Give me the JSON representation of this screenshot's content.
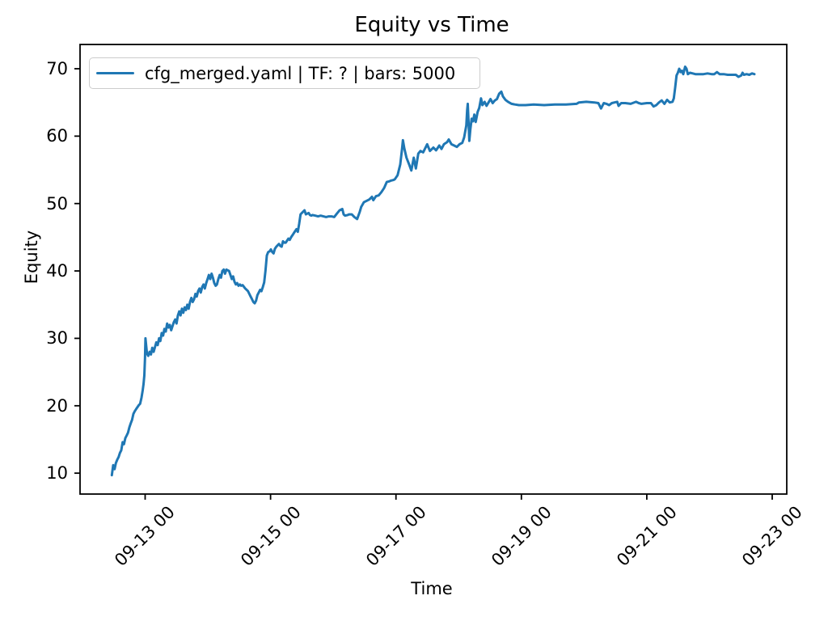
{
  "figure": {
    "title": "Equity vs Time",
    "xlabel": "Time",
    "ylabel": "Equity"
  },
  "legend": {
    "label": "cfg_merged.yaml | TF: ? | bars: 5000",
    "line_color": "#1f77b4"
  },
  "chart_data": {
    "type": "line",
    "title": "Equity vs Time",
    "xlabel": "Time",
    "ylabel": "Equity",
    "x_unit": "days since 09-13 00:00",
    "grid": false,
    "legend_position": "upper left",
    "xlim": [
      -1.038,
      10.232
    ],
    "ylim": [
      6.9,
      73.6
    ],
    "x_ticks": [
      {
        "t": 0,
        "label": "09-13 00"
      },
      {
        "t": 2,
        "label": "09-15 00"
      },
      {
        "t": 4,
        "label": "09-17 00"
      },
      {
        "t": 6,
        "label": "09-19 00"
      },
      {
        "t": 8,
        "label": "09-21 00"
      },
      {
        "t": 10,
        "label": "09-23 00"
      }
    ],
    "y_ticks": [
      10,
      20,
      30,
      40,
      50,
      60,
      70
    ],
    "series": [
      {
        "name": "cfg_merged.yaml | TF: ? | bars: 5000",
        "color": "#1f77b4",
        "points": [
          [
            -0.531,
            9.7
          ],
          [
            -0.509,
            11.2
          ],
          [
            -0.487,
            10.6
          ],
          [
            -0.467,
            11.5
          ],
          [
            -0.445,
            12.0
          ],
          [
            -0.423,
            12.4
          ],
          [
            -0.402,
            13.0
          ],
          [
            -0.38,
            13.4
          ],
          [
            -0.358,
            14.6
          ],
          [
            -0.338,
            14.3
          ],
          [
            -0.316,
            15.2
          ],
          [
            -0.294,
            15.6
          ],
          [
            -0.273,
            16.0
          ],
          [
            -0.251,
            16.8
          ],
          [
            -0.23,
            17.4
          ],
          [
            -0.209,
            17.9
          ],
          [
            -0.187,
            18.8
          ],
          [
            -0.165,
            19.2
          ],
          [
            -0.144,
            19.5
          ],
          [
            -0.122,
            19.8
          ],
          [
            -0.101,
            20.1
          ],
          [
            -0.08,
            20.3
          ],
          [
            -0.058,
            21.2
          ],
          [
            -0.039,
            22.3
          ],
          [
            -0.026,
            23.2
          ],
          [
            -0.013,
            24.5
          ],
          [
            -0.003,
            27.0
          ],
          [
            0.005,
            30.0
          ],
          [
            0.028,
            27.8
          ],
          [
            0.049,
            27.4
          ],
          [
            0.071,
            28.0
          ],
          [
            0.093,
            27.6
          ],
          [
            0.113,
            28.6
          ],
          [
            0.135,
            28.0
          ],
          [
            0.178,
            29.4
          ],
          [
            0.2,
            29.0
          ],
          [
            0.222,
            30.0
          ],
          [
            0.242,
            29.6
          ],
          [
            0.264,
            30.8
          ],
          [
            0.286,
            30.4
          ],
          [
            0.307,
            31.4
          ],
          [
            0.329,
            31.0
          ],
          [
            0.351,
            32.2
          ],
          [
            0.371,
            31.6
          ],
          [
            0.393,
            32.0
          ],
          [
            0.415,
            31.2
          ],
          [
            0.436,
            31.8
          ],
          [
            0.458,
            32.4
          ],
          [
            0.48,
            32.8
          ],
          [
            0.5,
            32.2
          ],
          [
            0.522,
            33.4
          ],
          [
            0.544,
            34.0
          ],
          [
            0.565,
            33.4
          ],
          [
            0.587,
            34.4
          ],
          [
            0.609,
            33.8
          ],
          [
            0.629,
            34.6
          ],
          [
            0.651,
            34.2
          ],
          [
            0.673,
            35.0
          ],
          [
            0.694,
            34.4
          ],
          [
            0.716,
            35.4
          ],
          [
            0.738,
            36.0
          ],
          [
            0.758,
            35.4
          ],
          [
            0.78,
            35.8
          ],
          [
            0.802,
            36.6
          ],
          [
            0.823,
            36.2
          ],
          [
            0.845,
            37.0
          ],
          [
            0.866,
            37.4
          ],
          [
            0.887,
            36.8
          ],
          [
            0.909,
            37.6
          ],
          [
            0.931,
            38.0
          ],
          [
            0.952,
            37.4
          ],
          [
            0.974,
            38.2
          ],
          [
            0.995,
            38.8
          ],
          [
            1.016,
            39.4
          ],
          [
            1.038,
            38.8
          ],
          [
            1.06,
            39.6
          ],
          [
            1.081,
            39.0
          ],
          [
            1.102,
            38.2
          ],
          [
            1.124,
            37.8
          ],
          [
            1.145,
            38.0
          ],
          [
            1.167,
            38.8
          ],
          [
            1.189,
            39.4
          ],
          [
            1.21,
            39.0
          ],
          [
            1.231,
            40.0
          ],
          [
            1.253,
            40.2
          ],
          [
            1.274,
            39.6
          ],
          [
            1.296,
            40.2
          ],
          [
            1.339,
            40.0
          ],
          [
            1.36,
            39.4
          ],
          [
            1.382,
            38.8
          ],
          [
            1.403,
            39.2
          ],
          [
            1.425,
            38.4
          ],
          [
            1.447,
            38.0
          ],
          [
            1.468,
            38.2
          ],
          [
            1.489,
            37.8
          ],
          [
            1.511,
            38.0
          ],
          [
            1.532,
            37.8
          ],
          [
            1.554,
            37.9
          ],
          [
            1.596,
            37.4
          ],
          [
            1.618,
            37.2
          ],
          [
            1.64,
            37.0
          ],
          [
            1.661,
            36.6
          ],
          [
            1.683,
            36.2
          ],
          [
            1.705,
            35.8
          ],
          [
            1.725,
            35.4
          ],
          [
            1.747,
            35.2
          ],
          [
            1.769,
            35.6
          ],
          [
            1.79,
            36.4
          ],
          [
            1.812,
            36.8
          ],
          [
            1.834,
            37.2
          ],
          [
            1.854,
            37.0
          ],
          [
            1.876,
            37.6
          ],
          [
            1.898,
            38.3
          ],
          [
            1.919,
            40.0
          ],
          [
            1.941,
            42.3
          ],
          [
            1.963,
            42.8
          ],
          [
            1.984,
            42.9
          ],
          [
            2.005,
            43.2
          ],
          [
            2.027,
            42.8
          ],
          [
            2.048,
            42.6
          ],
          [
            2.07,
            43.3
          ],
          [
            2.092,
            43.6
          ],
          [
            2.112,
            43.8
          ],
          [
            2.134,
            44.0
          ],
          [
            2.156,
            43.7
          ],
          [
            2.177,
            43.6
          ],
          [
            2.199,
            44.4
          ],
          [
            2.22,
            44.2
          ],
          [
            2.241,
            44.2
          ],
          [
            2.263,
            44.5
          ],
          [
            2.285,
            44.8
          ],
          [
            2.306,
            44.6
          ],
          [
            2.328,
            45.0
          ],
          [
            2.349,
            45.3
          ],
          [
            2.37,
            45.6
          ],
          [
            2.392,
            45.9
          ],
          [
            2.414,
            46.2
          ],
          [
            2.434,
            45.8
          ],
          [
            2.456,
            47.0
          ],
          [
            2.478,
            48.4
          ],
          [
            2.499,
            48.6
          ],
          [
            2.521,
            48.8
          ],
          [
            2.542,
            49.0
          ],
          [
            2.563,
            48.4
          ],
          [
            2.585,
            48.5
          ],
          [
            2.607,
            48.6
          ],
          [
            2.628,
            48.3
          ],
          [
            2.65,
            48.2
          ],
          [
            2.671,
            48.3
          ],
          [
            2.714,
            48.2
          ],
          [
            2.757,
            48.1
          ],
          [
            2.8,
            48.2
          ],
          [
            2.843,
            48.1
          ],
          [
            2.886,
            48.0
          ],
          [
            2.929,
            48.1
          ],
          [
            2.972,
            48.1
          ],
          [
            3.015,
            48.0
          ],
          [
            3.058,
            48.5
          ],
          [
            3.101,
            49.0
          ],
          [
            3.144,
            49.2
          ],
          [
            3.166,
            48.4
          ],
          [
            3.188,
            48.2
          ],
          [
            3.23,
            48.3
          ],
          [
            3.252,
            48.4
          ],
          [
            3.295,
            48.4
          ],
          [
            3.337,
            48.0
          ],
          [
            3.381,
            47.7
          ],
          [
            3.424,
            48.8
          ],
          [
            3.446,
            49.5
          ],
          [
            3.488,
            50.2
          ],
          [
            3.531,
            50.4
          ],
          [
            3.574,
            50.6
          ],
          [
            3.617,
            51.0
          ],
          [
            3.639,
            50.5
          ],
          [
            3.682,
            51.1
          ],
          [
            3.724,
            51.2
          ],
          [
            3.768,
            51.7
          ],
          [
            3.81,
            52.3
          ],
          [
            3.853,
            53.2
          ],
          [
            3.897,
            53.3
          ],
          [
            3.917,
            53.4
          ],
          [
            3.961,
            53.5
          ],
          [
            3.982,
            53.6
          ],
          [
            4.026,
            54.2
          ],
          [
            4.068,
            55.8
          ],
          [
            4.098,
            58.2
          ],
          [
            4.111,
            59.4
          ],
          [
            4.133,
            58.2
          ],
          [
            4.167,
            56.8
          ],
          [
            4.21,
            55.8
          ],
          [
            4.245,
            54.9
          ],
          [
            4.284,
            56.8
          ],
          [
            4.317,
            55.2
          ],
          [
            4.356,
            57.4
          ],
          [
            4.391,
            57.8
          ],
          [
            4.433,
            57.6
          ],
          [
            4.498,
            58.8
          ],
          [
            4.542,
            57.8
          ],
          [
            4.597,
            58.3
          ],
          [
            4.64,
            57.9
          ],
          [
            4.691,
            58.6
          ],
          [
            4.726,
            58.1
          ],
          [
            4.765,
            58.8
          ],
          [
            4.813,
            59.1
          ],
          [
            4.842,
            59.5
          ],
          [
            4.885,
            58.8
          ],
          [
            4.929,
            58.6
          ],
          [
            4.971,
            58.4
          ],
          [
            5.014,
            58.8
          ],
          [
            5.057,
            59.0
          ],
          [
            5.087,
            59.8
          ],
          [
            5.122,
            61.6
          ],
          [
            5.135,
            63.8
          ],
          [
            5.145,
            64.8
          ],
          [
            5.158,
            62.0
          ],
          [
            5.17,
            59.3
          ],
          [
            5.186,
            61.0
          ],
          [
            5.207,
            62.6
          ],
          [
            5.229,
            62.2
          ],
          [
            5.25,
            63.2
          ],
          [
            5.271,
            62.1
          ],
          [
            5.302,
            63.6
          ],
          [
            5.328,
            64.2
          ],
          [
            5.357,
            65.6
          ],
          [
            5.379,
            64.6
          ],
          [
            5.413,
            65.1
          ],
          [
            5.444,
            64.5
          ],
          [
            5.477,
            65.0
          ],
          [
            5.508,
            65.5
          ],
          [
            5.542,
            64.9
          ],
          [
            5.577,
            65.3
          ],
          [
            5.611,
            65.5
          ],
          [
            5.645,
            66.3
          ],
          [
            5.68,
            66.6
          ],
          [
            5.706,
            65.9
          ],
          [
            5.744,
            65.4
          ],
          [
            5.787,
            65.1
          ],
          [
            5.844,
            64.8
          ],
          [
            5.895,
            64.7
          ],
          [
            5.96,
            64.6
          ],
          [
            6.067,
            64.6
          ],
          [
            6.196,
            64.7
          ],
          [
            6.363,
            64.6
          ],
          [
            6.531,
            64.7
          ],
          [
            6.712,
            64.7
          ],
          [
            6.879,
            64.8
          ],
          [
            6.918,
            65.0
          ],
          [
            7.034,
            65.1
          ],
          [
            7.163,
            65.0
          ],
          [
            7.227,
            64.9
          ],
          [
            7.27,
            64.1
          ],
          [
            7.314,
            64.9
          ],
          [
            7.356,
            64.8
          ],
          [
            7.399,
            64.6
          ],
          [
            7.443,
            64.9
          ],
          [
            7.485,
            65.0
          ],
          [
            7.528,
            65.1
          ],
          [
            7.55,
            64.5
          ],
          [
            7.592,
            64.9
          ],
          [
            7.657,
            64.9
          ],
          [
            7.743,
            64.8
          ],
          [
            7.829,
            65.1
          ],
          [
            7.872,
            64.9
          ],
          [
            7.915,
            64.8
          ],
          [
            8.001,
            64.9
          ],
          [
            8.066,
            64.9
          ],
          [
            8.108,
            64.4
          ],
          [
            8.152,
            64.6
          ],
          [
            8.195,
            65.0
          ],
          [
            8.237,
            65.3
          ],
          [
            8.281,
            64.8
          ],
          [
            8.324,
            65.4
          ],
          [
            8.366,
            65.0
          ],
          [
            8.41,
            65.1
          ],
          [
            8.431,
            65.6
          ],
          [
            8.453,
            67.2
          ],
          [
            8.475,
            69.0
          ],
          [
            8.495,
            69.4
          ],
          [
            8.517,
            70.0
          ],
          [
            8.539,
            69.5
          ],
          [
            8.56,
            69.7
          ],
          [
            8.582,
            69.2
          ],
          [
            8.611,
            70.3
          ],
          [
            8.633,
            70.0
          ],
          [
            8.655,
            69.2
          ],
          [
            8.689,
            69.4
          ],
          [
            8.732,
            69.3
          ],
          [
            8.775,
            69.2
          ],
          [
            8.839,
            69.2
          ],
          [
            8.904,
            69.2
          ],
          [
            8.968,
            69.3
          ],
          [
            9.033,
            69.2
          ],
          [
            9.075,
            69.2
          ],
          [
            9.119,
            69.5
          ],
          [
            9.162,
            69.2
          ],
          [
            9.226,
            69.2
          ],
          [
            9.291,
            69.1
          ],
          [
            9.355,
            69.1
          ],
          [
            9.42,
            69.1
          ],
          [
            9.462,
            68.8
          ],
          [
            9.506,
            69.0
          ],
          [
            9.527,
            69.4
          ],
          [
            9.549,
            69.1
          ],
          [
            9.591,
            69.2
          ],
          [
            9.635,
            69.1
          ],
          [
            9.678,
            69.3
          ],
          [
            9.716,
            69.2
          ]
        ]
      }
    ]
  }
}
